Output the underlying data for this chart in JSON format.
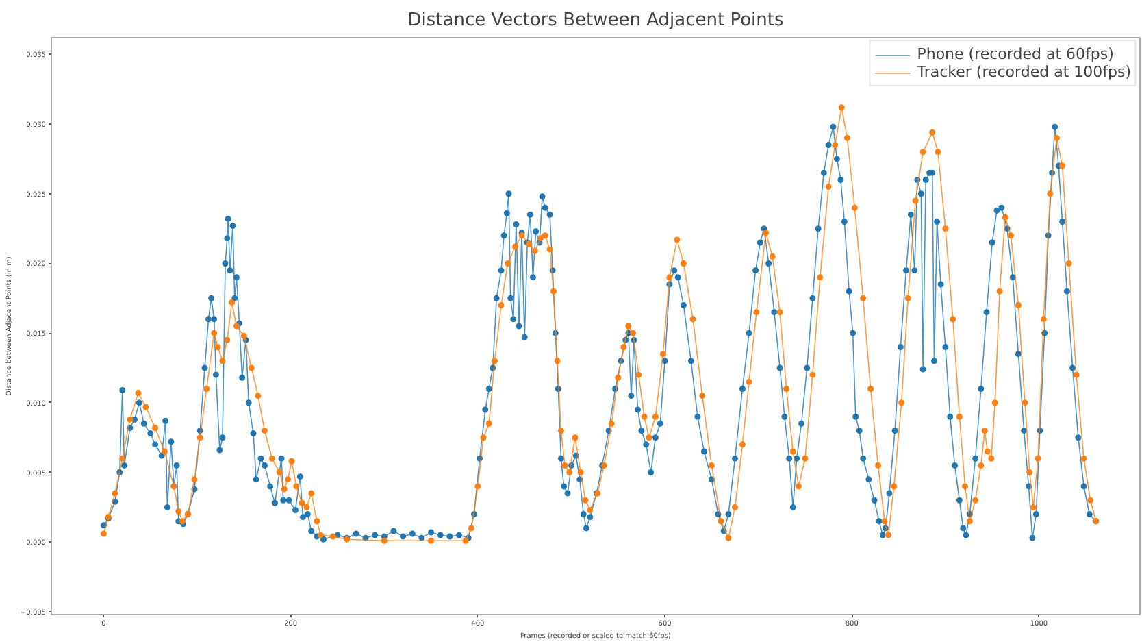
{
  "chart_data": {
    "type": "line",
    "title": "Distance Vectors Between Adjacent Points",
    "xlabel": "Frames (recorded or scaled to match 60fps)",
    "ylabel": "Distance between Adjacent Points (in m)",
    "xlim": [
      -56,
      1108
    ],
    "ylim": [
      -0.0052,
      0.0362
    ],
    "xticks": [
      {
        "value": 0,
        "label": "0"
      },
      {
        "value": 200,
        "label": "200"
      },
      {
        "value": 400,
        "label": "400"
      },
      {
        "value": 600,
        "label": "600"
      },
      {
        "value": 800,
        "label": "800"
      },
      {
        "value": 1000,
        "label": "1000"
      }
    ],
    "yticks": [
      {
        "value": -0.005,
        "label": "−0.005"
      },
      {
        "value": 0,
        "label": "0.000"
      },
      {
        "value": 0.005,
        "label": "0.005"
      },
      {
        "value": 0.01,
        "label": "0.010"
      },
      {
        "value": 0.015,
        "label": "0.015"
      },
      {
        "value": 0.02,
        "label": "0.020"
      },
      {
        "value": 0.025,
        "label": "0.025"
      },
      {
        "value": 0.03,
        "label": "0.030"
      },
      {
        "value": 0.035,
        "label": "0.035"
      }
    ],
    "grid": false,
    "legend": "top right",
    "marker": "circle",
    "line_style": "solid",
    "series": [
      {
        "name": "Phone (recorded at 60fps)",
        "color": "#1f77b4",
        "x": [
          0,
          5,
          12,
          17,
          20,
          22,
          28,
          33,
          38,
          43,
          50,
          55,
          62,
          66,
          68,
          72,
          75,
          78,
          80,
          85,
          90,
          97,
          103,
          108,
          112,
          115,
          118,
          120,
          124,
          127,
          130,
          132,
          133,
          135,
          138,
          140,
          142,
          145,
          148,
          152,
          155,
          160,
          163,
          168,
          172,
          178,
          183,
          190,
          192,
          198,
          205,
          210,
          213,
          218,
          222,
          228,
          235,
          250,
          260,
          270,
          280,
          290,
          300,
          310,
          320,
          330,
          340,
          350,
          360,
          370,
          380,
          390,
          396,
          402,
          408,
          412,
          416,
          420,
          425,
          428,
          431,
          433,
          435,
          438,
          441,
          444,
          447,
          450,
          453,
          456,
          459,
          462,
          466,
          469,
          472,
          477,
          480,
          483,
          486,
          489,
          492,
          496,
          500,
          505,
          509,
          513,
          516,
          520,
          527,
          533,
          540,
          547,
          553,
          558,
          561,
          564,
          567,
          571,
          575,
          580,
          585,
          590,
          595,
          600,
          605,
          610,
          614,
          620,
          628,
          635,
          642,
          650,
          657,
          663,
          668,
          675,
          683,
          690,
          697,
          702,
          706,
          711,
          717,
          723,
          728,
          733,
          737,
          741,
          746,
          752,
          758,
          764,
          770,
          775,
          780,
          784,
          788,
          792,
          797,
          801,
          804,
          808,
          812,
          818,
          824,
          829,
          833,
          836,
          840,
          846,
          852,
          858,
          863,
          867,
          870,
          874,
          876,
          879,
          883,
          886,
          888,
          891,
          895,
          900,
          905,
          910,
          915,
          919,
          922,
          926,
          932,
          938,
          944,
          950,
          955,
          960,
          966,
          972,
          978,
          984,
          989,
          993,
          997,
          1001,
          1006,
          1010,
          1014,
          1017,
          1021,
          1025,
          1030,
          1036,
          1042,
          1048,
          1054,
          1061
        ],
        "values": [
          0.0012,
          0.0017,
          0.0029,
          0.005,
          0.0109,
          0.0055,
          0.0082,
          0.0088,
          0.01,
          0.0085,
          0.0078,
          0.007,
          0.0062,
          0.0087,
          0.0025,
          0.0072,
          0.004,
          0.0055,
          0.0015,
          0.0013,
          0.002,
          0.0038,
          0.008,
          0.0125,
          0.016,
          0.0175,
          0.016,
          0.012,
          0.0066,
          0.0075,
          0.02,
          0.0218,
          0.0232,
          0.0195,
          0.0227,
          0.0175,
          0.019,
          0.0157,
          0.0118,
          0.0145,
          0.01,
          0.0078,
          0.0045,
          0.006,
          0.0055,
          0.004,
          0.0028,
          0.006,
          0.003,
          0.003,
          0.0023,
          0.0047,
          0.0018,
          0.002,
          0.0008,
          0.0004,
          0.0002,
          0.0005,
          0.0003,
          0.0006,
          0.0003,
          0.0005,
          0.0004,
          0.0008,
          0.0004,
          0.0006,
          0.0003,
          0.0007,
          0.0005,
          0.0004,
          0.0005,
          0.0003,
          0.002,
          0.006,
          0.0095,
          0.011,
          0.0125,
          0.0175,
          0.0195,
          0.022,
          0.0236,
          0.025,
          0.0175,
          0.016,
          0.0228,
          0.0155,
          0.0222,
          0.0147,
          0.0215,
          0.0235,
          0.019,
          0.0223,
          0.0215,
          0.0248,
          0.024,
          0.0235,
          0.0195,
          0.015,
          0.011,
          0.006,
          0.004,
          0.0035,
          0.0055,
          0.0062,
          0.0045,
          0.002,
          0.001,
          0.0018,
          0.0035,
          0.0055,
          0.008,
          0.011,
          0.013,
          0.0145,
          0.015,
          0.0105,
          0.0145,
          0.0095,
          0.008,
          0.007,
          0.005,
          0.0075,
          0.0085,
          0.013,
          0.0185,
          0.0195,
          0.019,
          0.017,
          0.013,
          0.009,
          0.0065,
          0.0045,
          0.002,
          0.0008,
          0.002,
          0.006,
          0.011,
          0.015,
          0.0195,
          0.0215,
          0.0225,
          0.02,
          0.0165,
          0.0125,
          0.009,
          0.006,
          0.0025,
          0.006,
          0.0085,
          0.0125,
          0.0175,
          0.0225,
          0.0265,
          0.0285,
          0.0298,
          0.0275,
          0.026,
          0.023,
          0.018,
          0.015,
          0.009,
          0.008,
          0.006,
          0.0045,
          0.003,
          0.0015,
          0.0005,
          0.001,
          0.0035,
          0.008,
          0.014,
          0.0195,
          0.0235,
          0.0195,
          0.026,
          0.025,
          0.0124,
          0.026,
          0.0265,
          0.0265,
          0.013,
          0.023,
          0.0185,
          0.014,
          0.009,
          0.0055,
          0.003,
          0.001,
          0.0005,
          0.002,
          0.006,
          0.011,
          0.0165,
          0.0215,
          0.0238,
          0.024,
          0.0225,
          0.019,
          0.0135,
          0.008,
          0.004,
          0.0003,
          0.002,
          0.008,
          0.015,
          0.022,
          0.0265,
          0.0298,
          0.027,
          0.023,
          0.018,
          0.0125,
          0.0075,
          0.004,
          0.002,
          0.0015
        ]
      },
      {
        "name": "Tracker (recorded at 100fps)",
        "color": "#ff7f0e",
        "x": [
          0,
          5,
          12,
          20,
          28,
          37,
          45,
          55,
          65,
          75,
          80,
          84,
          90,
          97,
          103,
          110,
          118,
          122,
          127,
          132,
          137,
          142,
          150,
          158,
          165,
          172,
          180,
          188,
          193,
          197,
          201,
          206,
          212,
          217,
          222,
          228,
          232,
          245,
          260,
          300,
          350,
          387,
          393,
          400,
          406,
          412,
          418,
          425,
          432,
          440,
          447,
          455,
          461,
          467,
          472,
          477,
          481,
          485,
          489,
          493,
          498,
          504,
          510,
          515,
          520,
          528,
          535,
          543,
          550,
          556,
          561,
          566,
          572,
          578,
          583,
          590,
          598,
          605,
          613,
          620,
          630,
          640,
          650,
          660,
          668,
          675,
          683,
          690,
          698,
          708,
          715,
          723,
          730,
          737,
          743,
          750,
          758,
          766,
          775,
          782,
          789,
          795,
          803,
          812,
          820,
          828,
          835,
          839,
          845,
          853,
          860,
          868,
          876,
          886,
          892,
          900,
          908,
          915,
          921,
          926,
          932,
          938,
          942,
          945,
          949,
          953,
          958,
          964,
          970,
          978,
          985,
          990,
          994,
          999,
          1005,
          1012,
          1019,
          1025,
          1032,
          1040,
          1048,
          1055,
          1061
        ],
        "values": [
          0.0006,
          0.0018,
          0.0035,
          0.006,
          0.0088,
          0.0107,
          0.0097,
          0.0082,
          0.0065,
          0.004,
          0.0022,
          0.0015,
          0.002,
          0.0045,
          0.0075,
          0.011,
          0.015,
          0.014,
          0.013,
          0.0145,
          0.0172,
          0.0155,
          0.0148,
          0.0125,
          0.0105,
          0.008,
          0.006,
          0.005,
          0.0038,
          0.0045,
          0.0058,
          0.004,
          0.0028,
          0.0025,
          0.0035,
          0.0015,
          0.0005,
          0.0004,
          0.0002,
          0.0001,
          0.0001,
          0.0001,
          0.001,
          0.004,
          0.0075,
          0.0085,
          0.013,
          0.017,
          0.02,
          0.0212,
          0.022,
          0.0214,
          0.0209,
          0.0218,
          0.022,
          0.021,
          0.018,
          0.013,
          0.008,
          0.0055,
          0.005,
          0.0075,
          0.005,
          0.003,
          0.0023,
          0.0035,
          0.0055,
          0.0085,
          0.0118,
          0.014,
          0.0155,
          0.015,
          0.012,
          0.009,
          0.0075,
          0.009,
          0.0135,
          0.019,
          0.0217,
          0.02,
          0.016,
          0.0105,
          0.0055,
          0.0015,
          0.0003,
          0.0025,
          0.007,
          0.0115,
          0.0165,
          0.0222,
          0.0205,
          0.0165,
          0.011,
          0.0065,
          0.004,
          0.006,
          0.012,
          0.019,
          0.0255,
          0.0285,
          0.0312,
          0.029,
          0.024,
          0.0175,
          0.011,
          0.0055,
          0.0015,
          0.0005,
          0.004,
          0.01,
          0.0175,
          0.0245,
          0.028,
          0.0294,
          0.028,
          0.0225,
          0.016,
          0.009,
          0.004,
          0.0015,
          0.003,
          0.0055,
          0.008,
          0.0065,
          0.006,
          0.01,
          0.018,
          0.0233,
          0.022,
          0.017,
          0.01,
          0.005,
          0.0025,
          0.006,
          0.016,
          0.025,
          0.029,
          0.027,
          0.02,
          0.012,
          0.006,
          0.003,
          0.0015
        ]
      }
    ]
  }
}
